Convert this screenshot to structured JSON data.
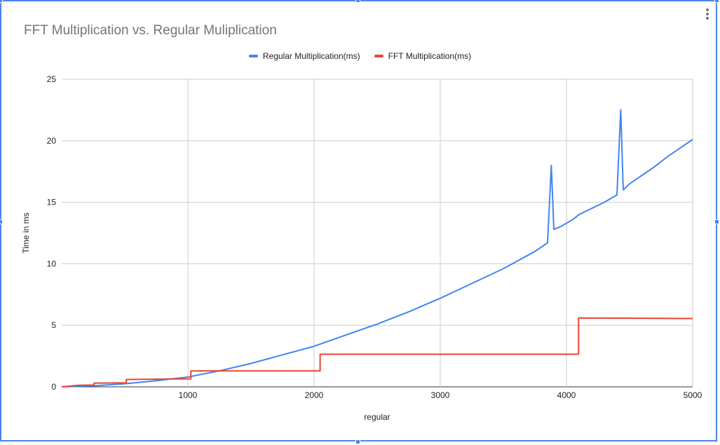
{
  "chart_data": {
    "type": "line",
    "title": "FFT Multiplication vs. Regular Muliplication",
    "xlabel": "regular",
    "ylabel": "Time in ms",
    "xlim": [
      0,
      5000
    ],
    "ylim": [
      0,
      25
    ],
    "xticks": [
      1000,
      2000,
      3000,
      4000,
      5000
    ],
    "yticks": [
      0,
      5,
      10,
      15,
      20,
      25
    ],
    "grid": true,
    "legend_position": "top",
    "series": [
      {
        "name": "Regular Multiplication(ms)",
        "color": "#4285f4",
        "x": [
          0,
          250,
          500,
          750,
          1000,
          1250,
          1500,
          1750,
          2000,
          2250,
          2500,
          2750,
          3000,
          3250,
          3500,
          3750,
          3850,
          3880,
          3900,
          3950,
          4000,
          4050,
          4100,
          4200,
          4300,
          4400,
          4430,
          4450,
          4500,
          4600,
          4700,
          4800,
          4900,
          5000
        ],
        "values": [
          0,
          0.08,
          0.25,
          0.5,
          0.8,
          1.3,
          1.9,
          2.6,
          3.3,
          4.2,
          5.1,
          6.1,
          7.2,
          8.4,
          9.6,
          11.0,
          11.7,
          18.0,
          12.8,
          13.0,
          13.3,
          13.6,
          14.0,
          14.5,
          15.0,
          15.6,
          22.5,
          16.0,
          16.5,
          17.2,
          17.9,
          18.7,
          19.4,
          20.1
        ]
      },
      {
        "name": "FFT Multiplication(ms)",
        "color": "#ea4335",
        "x": [
          0,
          128,
          256,
          256,
          512,
          512,
          1024,
          1024,
          2048,
          2048,
          4096,
          4096,
          5000
        ],
        "values": [
          0,
          0.12,
          0.15,
          0.3,
          0.33,
          0.6,
          0.65,
          1.3,
          1.3,
          2.65,
          2.65,
          5.6,
          5.55
        ]
      }
    ]
  }
}
